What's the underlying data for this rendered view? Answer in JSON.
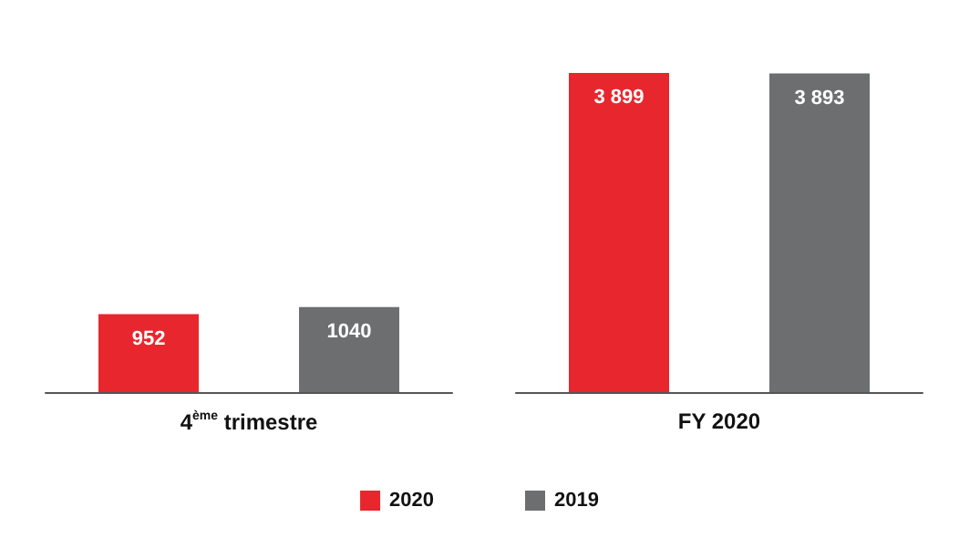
{
  "chart_data": {
    "type": "bar",
    "categories": [
      "4$^{ème}$ trimestre",
      "FY 2020"
    ],
    "series": [
      {
        "name": "2020",
        "color": "#e8262e",
        "values": [
          952,
          3899
        ],
        "value_labels": [
          "952",
          "3 899"
        ]
      },
      {
        "name": "2019",
        "color": "#6d6e70",
        "values": [
          1040,
          3893
        ],
        "value_labels": [
          "1040",
          "3 893"
        ]
      }
    ],
    "legend": "bottom",
    "grid": false
  }
}
